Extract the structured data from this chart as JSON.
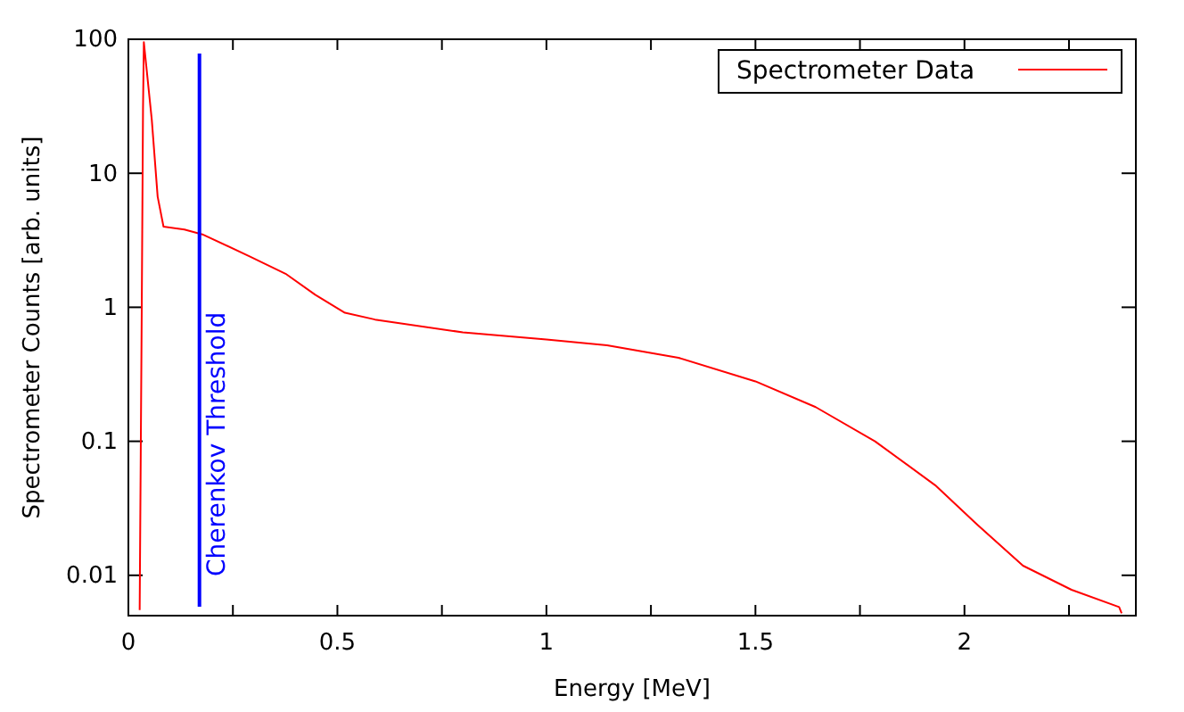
{
  "chart_data": {
    "type": "line",
    "xlabel": "Energy [MeV]",
    "ylabel": "Spectrometer Counts [arb. units]",
    "log": "y",
    "legend": "top right",
    "grid": false,
    "marker": "none",
    "line_style": "solid",
    "xlim": [
      0,
      2.41
    ],
    "ylim": [
      0.005,
      100
    ],
    "xticks": [
      0,
      {
        "value": 0.25,
        "label": null
      },
      0.5,
      {
        "value": 0.75,
        "label": null
      },
      1,
      {
        "value": 1.25,
        "label": null
      },
      1.5,
      {
        "value": 1.75,
        "label": null
      },
      2,
      {
        "value": 2.25,
        "label": null
      }
    ],
    "yticks": [
      0.01,
      0.1,
      1,
      10,
      100
    ],
    "x": [
      0.027,
      0.032,
      0.035,
      0.037,
      0.056,
      0.07,
      0.084,
      0.134,
      0.177,
      0.29,
      0.376,
      0.447,
      0.518,
      0.59,
      0.8,
      1.0,
      1.145,
      1.316,
      1.5,
      1.644,
      1.786,
      1.93,
      2.03,
      2.14,
      2.256,
      2.37,
      2.376
    ],
    "series": [
      {
        "name": "Spectrometer Data",
        "color": "#ff0000",
        "values": [
          0.0055,
          1,
          30,
          95,
          25,
          6.7,
          4.0,
          3.8,
          3.5,
          2.4,
          1.78,
          1.24,
          0.91,
          0.81,
          0.65,
          0.575,
          0.52,
          0.42,
          0.28,
          0.18,
          0.1,
          0.047,
          0.024,
          0.0118,
          0.0078,
          0.0058,
          0.0052
        ]
      }
    ],
    "ref_lines": [
      {
        "axis": "x",
        "value": 0.17,
        "label": "Cherenkov Threshold",
        "color": "#0000ff"
      }
    ]
  }
}
